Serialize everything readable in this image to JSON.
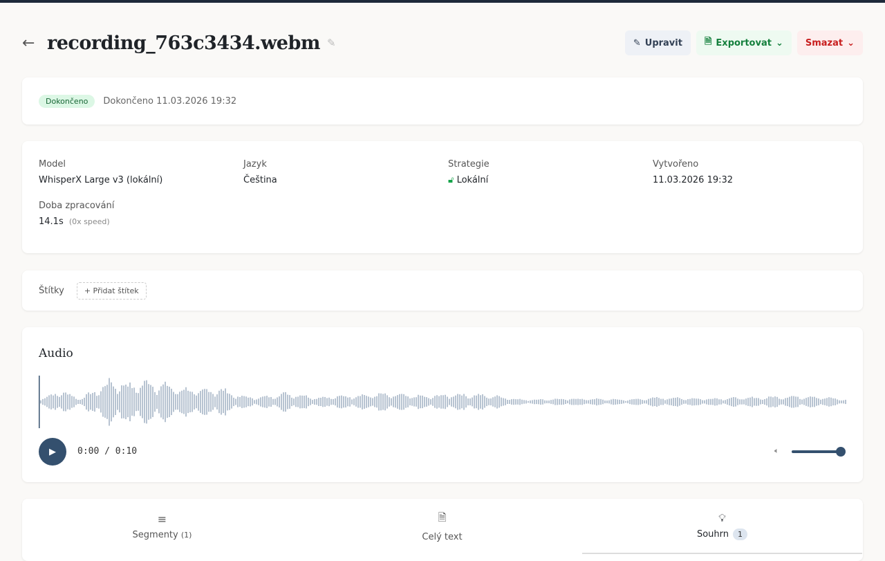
{
  "header": {
    "title": "recording_763c3434.webm",
    "edit": "Upravit",
    "export": "Exportovat",
    "delete": "Smazat"
  },
  "status": {
    "badge": "Dokončeno",
    "text": "Dokončeno 11.03.2026 19:32"
  },
  "info": {
    "model_label": "Model",
    "model": "WhisperX Large v3 (lokální)",
    "lang_label": "Jazyk",
    "lang": "Čeština",
    "strategy_label": "Strategie",
    "strategy": "Lokální",
    "created_label": "Vytvořeno",
    "created": "11.03.2026 19:32",
    "duration_label": "Doba zpracování",
    "duration": "14.1s",
    "speed": "(0x speed)"
  },
  "tags": {
    "label": "Štítky",
    "add": "+ Přidat štítek"
  },
  "audio": {
    "title": "Audio",
    "time": "0:00 / 0:10",
    "volume": 1.0,
    "progress": 0
  },
  "tabs": [
    {
      "label": "Segmenty",
      "count": "(1)"
    },
    {
      "label": "Celý text"
    },
    {
      "label": "Souhrn",
      "count": "1"
    }
  ],
  "colors": {
    "accent": "#34506e",
    "wave": "#b7c3d1"
  }
}
